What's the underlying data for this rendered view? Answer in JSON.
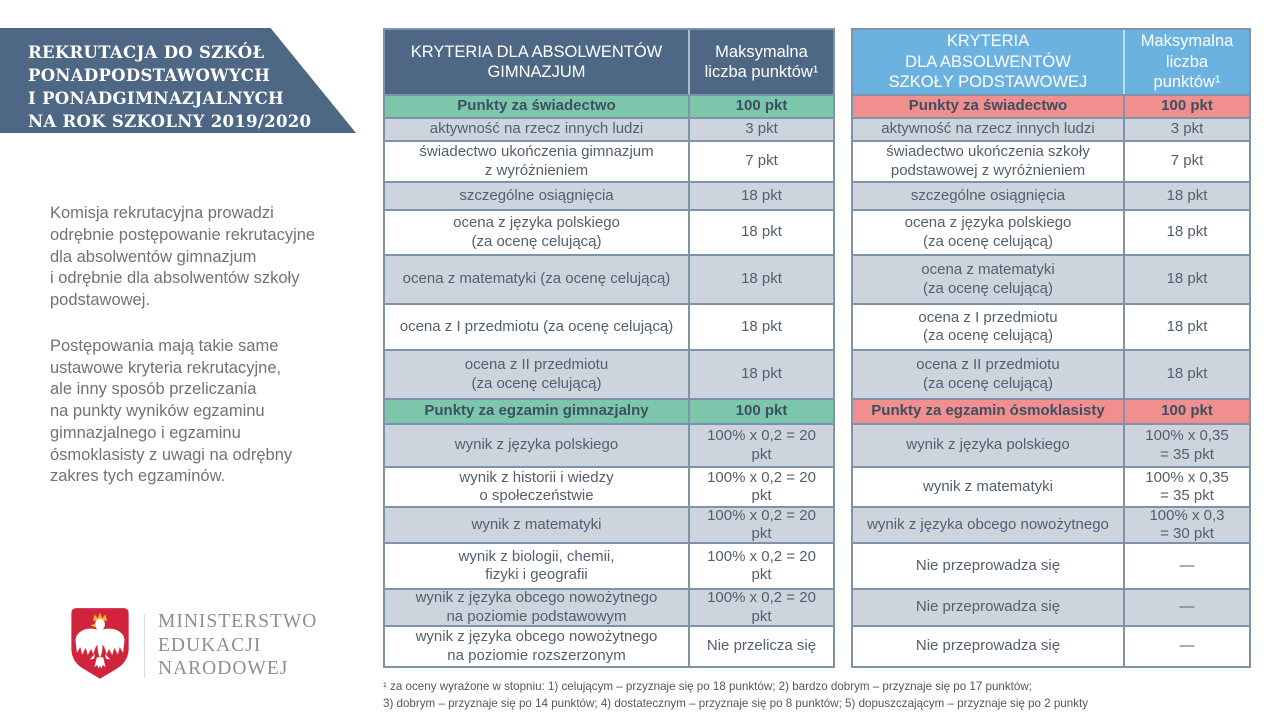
{
  "colors": {
    "banner_bg": "#4d6784",
    "left_header_bg": "#4d6784",
    "right_header_bg": "#6cb2e1",
    "table_border": "#7e93aa",
    "row_shaded": "#cdd4de",
    "cell_text": "#525f6e",
    "section_text": "#3e4f62",
    "intro_text": "#717275",
    "ministry_gray": "#8c8e90",
    "footnote_text": "#55565a",
    "green_accent": "#7cc7ac",
    "red_accent": "#f18f8e",
    "shield_red": "#d2233c",
    "crown_gold": "#f3b229"
  },
  "banner": {
    "text": "REKRUTACJA DO SZKÓŁ\nPONADPODSTAWOWYCH\nI PONADGIMNAZJALNYCH\nNA ROK SZKOLNY 2019/2020"
  },
  "intro": {
    "p1": "Komisja rekrutacyjna prowadzi\nodrębnie postępowanie rekrutacyjne\ndla absolwentów gimnazjum\ni odrębnie dla absolwentów szkoły\npodstawowej.",
    "p2": "Postępowania mają takie same\nustawowe kryteria rekrutacyjne,\nale inny sposób przeliczania\nna punkty wyników egzaminu\ngimnazjalnego i egzaminu\nósmoklasisty z uwagi na odrębny\nzakres tych egzaminów."
  },
  "logo": {
    "ministry": "MINISTERSTWO\nEDUKACJI\nNARODOWEJ",
    "emblem": "polish-eagle-coat-of-arms"
  },
  "tables": {
    "left": {
      "accent": "#7cc7ac",
      "header": {
        "criteria": "KRYTERIA DLA ABSOLWENTÓW\nGIMNAZJUM",
        "points": "Maksymalna\nliczba punktów¹"
      },
      "rows": [
        {
          "type": "section",
          "criteria": "Punkty za świadectwo",
          "points": "100 pkt"
        },
        {
          "type": "data",
          "criteria": "aktywność na rzecz innych ludzi",
          "points": "3 pkt"
        },
        {
          "type": "data",
          "criteria": "świadectwo ukończenia gimnazjum\nz wyróżnieniem",
          "points": "7 pkt"
        },
        {
          "type": "data",
          "criteria": "szczególne osiągnięcia",
          "points": "18 pkt"
        },
        {
          "type": "data",
          "criteria": "ocena z języka polskiego\n(za ocenę celującą)",
          "points": "18 pkt"
        },
        {
          "type": "data",
          "criteria": "ocena z matematyki (za ocenę celującą)",
          "points": "18 pkt"
        },
        {
          "type": "data",
          "criteria": "ocena z I przedmiotu (za ocenę celującą)",
          "points": "18 pkt"
        },
        {
          "type": "data",
          "criteria": "ocena z II przedmiotu\n(za ocenę celującą)",
          "points": "18 pkt"
        },
        {
          "type": "section",
          "criteria": "Punkty za egzamin gimnazjalny",
          "points": "100 pkt"
        },
        {
          "type": "data",
          "criteria": "wynik z języka polskiego",
          "points": "100% x 0,2 = 20 pkt"
        },
        {
          "type": "data",
          "criteria": "wynik z historii i wiedzy\no społeczeństwie",
          "points": "100% x 0,2 = 20 pkt"
        },
        {
          "type": "data",
          "criteria": "wynik z matematyki",
          "points": "100% x 0,2 = 20 pkt"
        },
        {
          "type": "data",
          "criteria": "wynik z biologii, chemii,\nfizyki i geografii",
          "points": "100% x 0,2 = 20 pkt"
        },
        {
          "type": "data",
          "criteria": "wynik z języka obcego nowożytnego\nna poziomie podstawowym",
          "points": "100% x 0,2 = 20 pkt"
        },
        {
          "type": "data",
          "criteria": "wynik z języka obcego nowożytnego\nna poziomie rozszerzonym",
          "points": "Nie przelicza się"
        }
      ]
    },
    "right": {
      "accent": "#f18f8e",
      "header": {
        "criteria": "KRYTERIA\nDLA ABSOLWENTÓW\nSZKOŁY PODSTAWOWEJ",
        "points": "Maksymalna\nliczba punktów¹"
      },
      "rows": [
        {
          "type": "section",
          "criteria": "Punkty za świadectwo",
          "points": "100 pkt"
        },
        {
          "type": "data",
          "criteria": "aktywność na rzecz innych ludzi",
          "points": "3 pkt"
        },
        {
          "type": "data",
          "criteria": "świadectwo ukończenia szkoły\npodstawowej z wyróżnieniem",
          "points": "7 pkt"
        },
        {
          "type": "data",
          "criteria": "szczególne osiągnięcia",
          "points": "18 pkt"
        },
        {
          "type": "data",
          "criteria": "ocena z języka polskiego\n(za ocenę celującą)",
          "points": "18 pkt"
        },
        {
          "type": "data",
          "criteria": "ocena z matematyki\n(za ocenę celującą)",
          "points": "18 pkt"
        },
        {
          "type": "data",
          "criteria": "ocena z I przedmiotu\n(za ocenę celującą)",
          "points": "18 pkt"
        },
        {
          "type": "data",
          "criteria": "ocena z II przedmiotu\n(za ocenę celującą)",
          "points": "18 pkt"
        },
        {
          "type": "section",
          "criteria": "Punkty za egzamin ósmoklasisty",
          "points": "100 pkt"
        },
        {
          "type": "data",
          "criteria": "wynik z języka polskiego",
          "points": "100% x 0,35\n= 35 pkt"
        },
        {
          "type": "data",
          "criteria": "wynik z matematyki",
          "points": "100% x 0,35\n= 35 pkt"
        },
        {
          "type": "data",
          "criteria": "wynik z języka obcego nowożytnego",
          "points": "100% x 0,3\n= 30 pkt"
        },
        {
          "type": "data",
          "criteria": "Nie przeprowadza się",
          "points": "—"
        },
        {
          "type": "data",
          "criteria": "Nie przeprowadza się",
          "points": "—"
        },
        {
          "type": "data",
          "criteria": "Nie przeprowadza się",
          "points": "—"
        }
      ]
    }
  },
  "footnote": {
    "text": "¹ za oceny wyrażone w stopniu: 1) celującym – przyznaje się po 18 punktów; 2) bardzo dobrym – przyznaje się po 17 punktów;\n3) dobrym – przyznaje się po 14 punktów; 4) dostatecznym – przyznaje się po 8 punktów; 5) dopuszczającym – przyznaje się po 2 punkty"
  }
}
